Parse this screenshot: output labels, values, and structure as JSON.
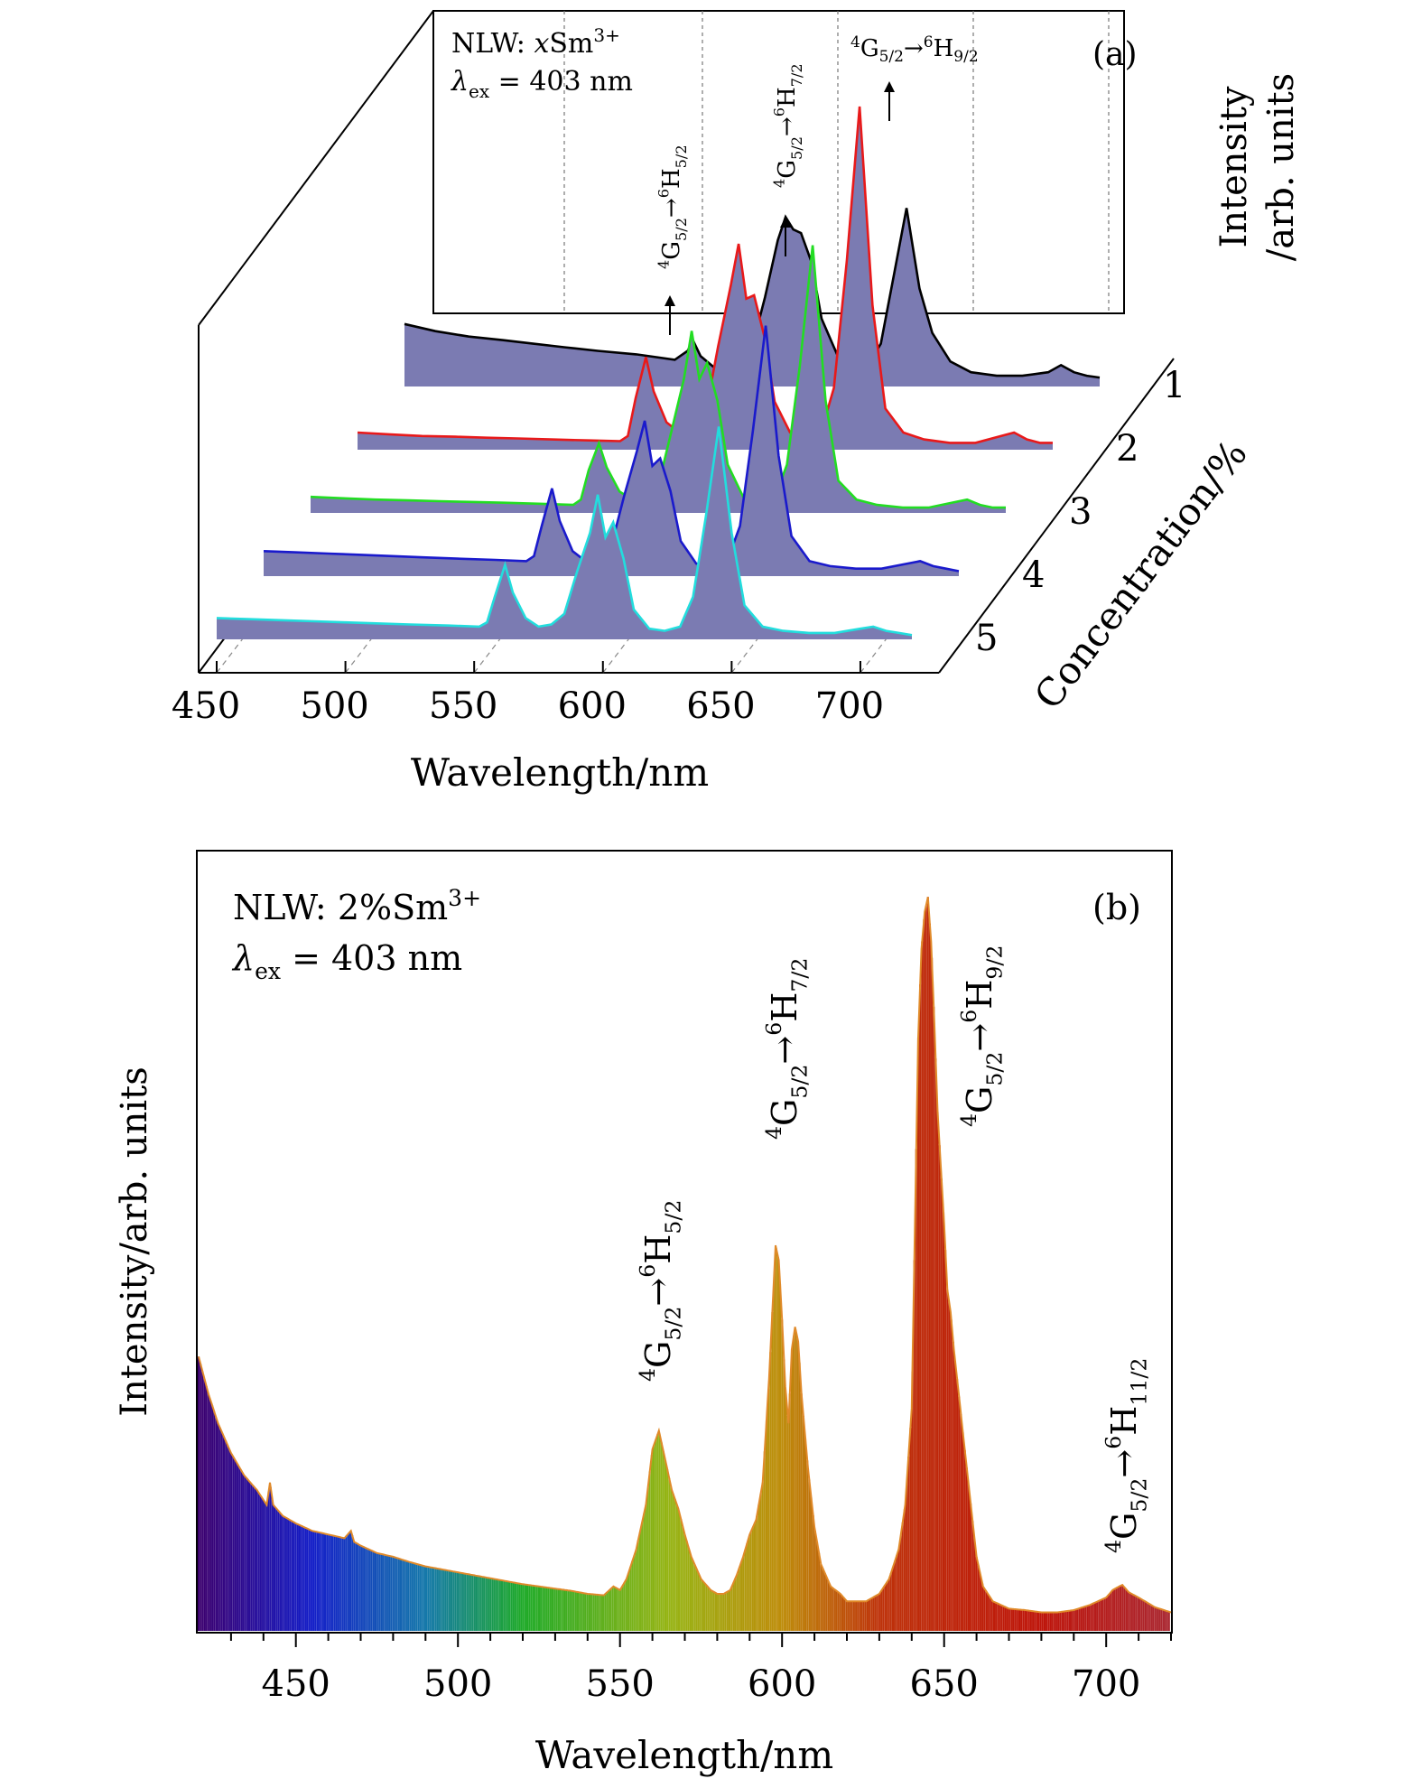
{
  "chart_data": [
    {
      "panel": "(a)",
      "type": "area",
      "style": "3d-waterfall",
      "xlabel": "Wavelength/nm",
      "ylabel_line1": "Intensity",
      "ylabel_line2": "/arb. units",
      "zlabel": "Concentration/%",
      "xlim": [
        450,
        720
      ],
      "ylim": [
        0,
        1
      ],
      "x_ticks": [
        "450",
        "500",
        "550",
        "600",
        "650",
        "700"
      ],
      "x_tick_values": [
        450,
        500,
        550,
        600,
        650,
        700
      ],
      "z_ticks": [
        "1",
        "2",
        "3",
        "4",
        "5"
      ],
      "grid": "dashed gridlines",
      "annotation_title": "NLW: ",
      "annotation_title_var": "x",
      "annotation_title_ion": "Sm",
      "annotation_title_charge": "3+",
      "annotation_excitation_symbol": "λ",
      "annotation_excitation_sub": "ex",
      "annotation_excitation_value": " = 403 nm",
      "peak_labels": [
        {
          "at_nm": 562,
          "from_sup": "4",
          "from": "G",
          "from_sub": "5/2",
          "arrow": "→",
          "to_sup": "6",
          "to": "H",
          "to_sub": "5/2"
        },
        {
          "at_nm": 598,
          "from_sup": "4",
          "from": "G",
          "from_sub": "5/2",
          "arrow": "→",
          "to_sup": "6",
          "to": "H",
          "to_sub": "7/2"
        },
        {
          "at_nm": 645,
          "from_sup": "4",
          "from": "G",
          "from_sub": "5/2",
          "arrow": "→",
          "to_sup": "6",
          "to": "H",
          "to_sub": "9/2"
        }
      ],
      "fill_color": "#7b7bb2",
      "series": [
        {
          "name": "1",
          "color": "#000000",
          "max": 0.52,
          "x": [
            450,
            462,
            475,
            488,
            500,
            512,
            525,
            540,
            555,
            560,
            562,
            565,
            570,
            575,
            580,
            585,
            590,
            595,
            598,
            601,
            604,
            608,
            612,
            618,
            624,
            630,
            635,
            640,
            645,
            650,
            655,
            662,
            670,
            680,
            690,
            700,
            705,
            710,
            715,
            720
          ],
          "y": [
            0.35,
            0.31,
            0.28,
            0.26,
            0.24,
            0.22,
            0.2,
            0.18,
            0.15,
            0.2,
            0.26,
            0.17,
            0.11,
            0.1,
            0.12,
            0.22,
            0.5,
            0.82,
            0.95,
            0.88,
            0.86,
            0.7,
            0.38,
            0.18,
            0.12,
            0.12,
            0.24,
            0.62,
            1.0,
            0.55,
            0.3,
            0.14,
            0.08,
            0.06,
            0.06,
            0.08,
            0.12,
            0.08,
            0.06,
            0.05
          ]
        },
        {
          "name": "2",
          "color": "#e8191a",
          "max": 1.0,
          "x": [
            450,
            462,
            475,
            488,
            500,
            512,
            525,
            540,
            552,
            555,
            558,
            562,
            565,
            570,
            575,
            580,
            585,
            590,
            595,
            598,
            601,
            604,
            608,
            612,
            618,
            624,
            630,
            635,
            640,
            645,
            650,
            655,
            662,
            670,
            680,
            690,
            700,
            705,
            710,
            715,
            720
          ],
          "y": [
            0.05,
            0.045,
            0.04,
            0.038,
            0.035,
            0.033,
            0.03,
            0.027,
            0.025,
            0.04,
            0.15,
            0.27,
            0.17,
            0.08,
            0.05,
            0.06,
            0.1,
            0.3,
            0.48,
            0.6,
            0.44,
            0.45,
            0.33,
            0.14,
            0.05,
            0.04,
            0.05,
            0.18,
            0.55,
            1.0,
            0.42,
            0.12,
            0.05,
            0.03,
            0.02,
            0.02,
            0.04,
            0.05,
            0.03,
            0.02,
            0.02
          ]
        },
        {
          "name": "3",
          "color": "#22dd22",
          "max": 0.78,
          "x": [
            450,
            462,
            475,
            488,
            500,
            512,
            525,
            540,
            552,
            555,
            558,
            562,
            565,
            570,
            575,
            580,
            585,
            590,
            595,
            598,
            601,
            604,
            608,
            612,
            618,
            624,
            630,
            635,
            640,
            645,
            650,
            655,
            662,
            670,
            680,
            690,
            700,
            705,
            710,
            715,
            720
          ],
          "y": [
            0.06,
            0.055,
            0.05,
            0.047,
            0.044,
            0.041,
            0.038,
            0.034,
            0.03,
            0.05,
            0.16,
            0.26,
            0.17,
            0.08,
            0.05,
            0.06,
            0.1,
            0.3,
            0.5,
            0.68,
            0.5,
            0.56,
            0.42,
            0.18,
            0.06,
            0.04,
            0.05,
            0.18,
            0.55,
            1.0,
            0.42,
            0.12,
            0.05,
            0.03,
            0.02,
            0.02,
            0.04,
            0.05,
            0.03,
            0.02,
            0.02
          ]
        },
        {
          "name": "4",
          "color": "#1a1acc",
          "max": 0.73,
          "x": [
            450,
            462,
            475,
            488,
            500,
            512,
            525,
            540,
            552,
            555,
            558,
            562,
            565,
            570,
            575,
            580,
            585,
            590,
            595,
            598,
            601,
            604,
            608,
            612,
            618,
            624,
            630,
            635,
            640,
            645,
            650,
            655,
            662,
            670,
            680,
            690,
            700,
            705,
            710,
            715,
            720
          ],
          "y": [
            0.1,
            0.095,
            0.09,
            0.085,
            0.08,
            0.075,
            0.07,
            0.065,
            0.06,
            0.08,
            0.2,
            0.35,
            0.22,
            0.1,
            0.06,
            0.07,
            0.12,
            0.32,
            0.5,
            0.62,
            0.44,
            0.47,
            0.34,
            0.14,
            0.05,
            0.04,
            0.06,
            0.2,
            0.58,
            1.0,
            0.48,
            0.16,
            0.06,
            0.04,
            0.03,
            0.03,
            0.05,
            0.06,
            0.04,
            0.03,
            0.02
          ]
        },
        {
          "name": "5",
          "color": "#22dddd",
          "max": 0.62,
          "x": [
            450,
            462,
            475,
            488,
            500,
            512,
            525,
            540,
            552,
            555,
            558,
            562,
            565,
            570,
            575,
            580,
            585,
            590,
            595,
            598,
            601,
            604,
            608,
            612,
            618,
            624,
            630,
            635,
            640,
            645,
            650,
            655,
            662,
            670,
            680,
            690,
            700,
            705,
            710,
            715,
            720
          ],
          "y": [
            0.1,
            0.095,
            0.09,
            0.085,
            0.08,
            0.075,
            0.07,
            0.065,
            0.06,
            0.08,
            0.2,
            0.35,
            0.22,
            0.1,
            0.06,
            0.07,
            0.12,
            0.32,
            0.5,
            0.68,
            0.48,
            0.55,
            0.38,
            0.14,
            0.05,
            0.04,
            0.06,
            0.2,
            0.58,
            1.0,
            0.5,
            0.16,
            0.06,
            0.04,
            0.03,
            0.03,
            0.05,
            0.06,
            0.04,
            0.03,
            0.02
          ]
        }
      ]
    },
    {
      "panel": "(b)",
      "type": "area",
      "style": "spectrum-colored",
      "xlabel": "Wavelength/nm",
      "ylabel": "Intensity/arb. units",
      "xlim": [
        420,
        720
      ],
      "ylim": [
        0,
        1.05
      ],
      "x_ticks": [
        "450",
        "500",
        "550",
        "600",
        "650",
        "700"
      ],
      "x_tick_values": [
        450,
        500,
        550,
        600,
        650,
        700
      ],
      "annotation_title": "NLW: 2%Sm",
      "annotation_title_charge": "3+",
      "annotation_excitation_symbol": "λ",
      "annotation_excitation_sub": "ex",
      "annotation_excitation_value": " = 403 nm",
      "outline_color": "#e08a2a",
      "peak_labels": [
        {
          "at_nm": 562,
          "from_sup": "4",
          "from": "G",
          "from_sub": "5/2",
          "arrow": "→",
          "to_sup": "6",
          "to": "H",
          "to_sub": "5/2"
        },
        {
          "at_nm": 598,
          "from_sup": "4",
          "from": "G",
          "from_sub": "5/2",
          "arrow": "→",
          "to_sup": "6",
          "to": "H",
          "to_sub": "7/2"
        },
        {
          "at_nm": 645,
          "from_sup": "4",
          "from": "G",
          "from_sub": "5/2",
          "arrow": "→",
          "to_sup": "6",
          "to": "H",
          "to_sub": "9/2"
        },
        {
          "at_nm": 705,
          "from_sup": "4",
          "from": "G",
          "from_sub": "5/2",
          "arrow": "→",
          "to_sup": "6",
          "to": "H",
          "to_sub": "11/2"
        }
      ],
      "x": [
        420,
        423,
        426,
        430,
        434,
        438,
        441,
        442,
        443,
        446,
        450,
        455,
        460,
        465,
        467,
        468,
        470,
        475,
        480,
        485,
        490,
        495,
        500,
        505,
        510,
        515,
        520,
        525,
        530,
        535,
        540,
        545,
        548,
        550,
        552,
        555,
        558,
        560,
        562,
        564,
        566,
        568,
        570,
        572,
        575,
        578,
        580,
        582,
        584,
        586,
        588,
        590,
        592,
        594,
        596,
        598,
        599,
        600,
        601,
        602,
        603,
        604,
        605,
        606,
        608,
        610,
        612,
        615,
        618,
        620,
        623,
        626,
        630,
        633,
        636,
        638,
        640,
        641,
        642,
        643,
        644,
        645,
        646,
        647,
        648,
        650,
        651,
        652,
        653,
        655,
        658,
        660,
        662,
        665,
        670,
        675,
        680,
        685,
        690,
        695,
        700,
        702,
        704,
        705,
        707,
        710,
        715,
        720
      ],
      "y": [
        0.37,
        0.32,
        0.28,
        0.24,
        0.21,
        0.19,
        0.17,
        0.2,
        0.17,
        0.155,
        0.145,
        0.135,
        0.13,
        0.125,
        0.135,
        0.12,
        0.115,
        0.105,
        0.1,
        0.093,
        0.087,
        0.083,
        0.079,
        0.075,
        0.071,
        0.067,
        0.063,
        0.06,
        0.057,
        0.054,
        0.05,
        0.048,
        0.06,
        0.055,
        0.07,
        0.11,
        0.17,
        0.245,
        0.27,
        0.23,
        0.19,
        0.165,
        0.13,
        0.1,
        0.07,
        0.055,
        0.05,
        0.05,
        0.055,
        0.075,
        0.1,
        0.13,
        0.15,
        0.2,
        0.34,
        0.52,
        0.5,
        0.42,
        0.33,
        0.28,
        0.38,
        0.41,
        0.39,
        0.32,
        0.22,
        0.14,
        0.09,
        0.06,
        0.05,
        0.04,
        0.04,
        0.04,
        0.05,
        0.07,
        0.11,
        0.17,
        0.3,
        0.55,
        0.8,
        0.92,
        0.97,
        0.99,
        0.93,
        0.82,
        0.7,
        0.55,
        0.46,
        0.43,
        0.38,
        0.3,
        0.18,
        0.1,
        0.06,
        0.04,
        0.03,
        0.028,
        0.025,
        0.025,
        0.028,
        0.035,
        0.045,
        0.055,
        0.06,
        0.062,
        0.052,
        0.045,
        0.032,
        0.025
      ]
    }
  ]
}
